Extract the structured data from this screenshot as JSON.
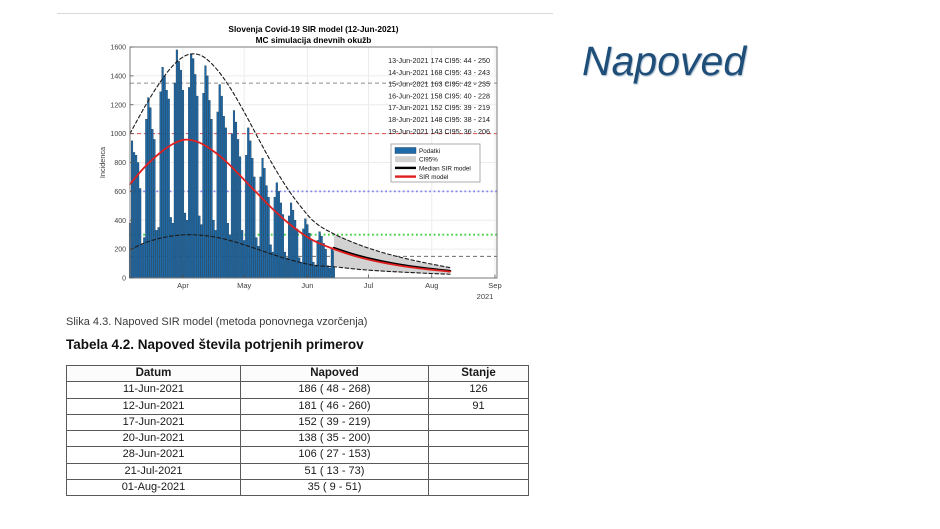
{
  "slide": {
    "title": "Napoved",
    "title_color": "#1f4e79"
  },
  "figure_caption": "Slika 4.3. Napoved SIR model (metoda ponovnega vzorčenja)",
  "table": {
    "title": "Tabela 4.2. Napoved števila potrjenih primerov",
    "columns": [
      "Datum",
      "Napoved",
      "Stanje"
    ],
    "rows": [
      [
        "11-Jun-2021",
        "186 ( 48 - 268)",
        "126"
      ],
      [
        "12-Jun-2021",
        "181 ( 46 - 260)",
        "91"
      ],
      [
        "17-Jun-2021",
        "152 ( 39 - 219)",
        ""
      ],
      [
        "20-Jun-2021",
        "138 ( 35 - 200)",
        ""
      ],
      [
        "28-Jun-2021",
        "106 ( 27 - 153)",
        ""
      ],
      [
        "21-Jul-2021",
        "51 ( 13 - 73)",
        ""
      ],
      [
        "01-Aug-2021",
        "35 ( 9 - 51)",
        ""
      ]
    ]
  },
  "chart_data": {
    "type": "bar",
    "title": "Slovenja Covid-19 SIR model (12-Jun-2021)",
    "subtitle": "MC simulacija dnevnih okužb",
    "ylabel": "Incidenca",
    "ylim": [
      0,
      1600
    ],
    "yticks": [
      0,
      200,
      400,
      600,
      800,
      1000,
      1200,
      1400,
      1600
    ],
    "xticks": [
      {
        "label": "Apr",
        "day": 26
      },
      {
        "label": "May",
        "day": 56
      },
      {
        "label": "Jun",
        "day": 87
      },
      {
        "label": "Jul",
        "day": 117
      },
      {
        "label": "Aug",
        "day": 148
      },
      {
        "label": "Sep",
        "day": 179
      }
    ],
    "x_domain_days": [
      0,
      180
    ],
    "year_label": "2021",
    "grid": true,
    "annotations": [
      "13-Jun-2021  174 CI95:  44 -  250",
      "14-Jun-2021  168 CI95:  43 -  243",
      "15-Jun-2021  163 CI95:  42 -  235",
      "16-Jun-2021  158 CI95:  40 -  228",
      "17-Jun-2021  152 CI95:  39 -  219",
      "18-Jun-2021  148 CI95:  38 -  214",
      "19-Jun-2021  143 CI95:  36 -  206"
    ],
    "legend": {
      "position": "right-middle",
      "entries": [
        {
          "label": "Podatki",
          "type": "patch",
          "color": "#1f6aa9"
        },
        {
          "label": "CI95%",
          "type": "patch",
          "color": "#d2d2d2"
        },
        {
          "label": "Median SIR model",
          "type": "line",
          "color": "#000000"
        },
        {
          "label": "SIR model",
          "type": "line",
          "color": "#e01f1f"
        }
      ]
    },
    "hlines": [
      {
        "value": 1350,
        "color": "#8c8c8c",
        "style": "dashed"
      },
      {
        "value": 1000,
        "color": "#e05050",
        "style": "dashed"
      },
      {
        "value": 600,
        "color": "#8585ee",
        "style": "dotted"
      },
      {
        "value": 300,
        "color": "#3fd23f",
        "style": "dotted"
      },
      {
        "value": 150,
        "color": "#6e6e6e",
        "style": "dashed"
      }
    ],
    "bars": {
      "name": "Podatki",
      "color": "#1f6aa9",
      "edge_color": "#10344f",
      "start_day": 0,
      "values": [
        380,
        950,
        870,
        850,
        800,
        620,
        230,
        280,
        1100,
        1250,
        1180,
        1030,
        960,
        330,
        350,
        1290,
        1460,
        1400,
        1300,
        1240,
        420,
        380,
        1350,
        1580,
        1500,
        1440,
        1300,
        450,
        400,
        1320,
        1550,
        1520,
        1410,
        1260,
        430,
        370,
        1280,
        1470,
        1400,
        1230,
        1100,
        400,
        330,
        1150,
        1340,
        1260,
        1120,
        1040,
        380,
        300,
        1000,
        1160,
        1080,
        960,
        840,
        330,
        260,
        850,
        1040,
        950,
        830,
        700,
        280,
        220,
        700,
        830,
        760,
        640,
        560,
        230,
        180,
        560,
        660,
        600,
        520,
        440,
        180,
        140,
        430,
        520,
        470,
        400,
        340,
        140,
        110,
        340,
        410,
        370,
        310,
        260,
        110,
        90,
        260,
        320,
        290,
        240,
        200,
        85,
        70,
        210,
        190
      ]
    },
    "ci_band": {
      "name": "CI95%",
      "color": "#d2d2d2",
      "upper": [
        [
          100,
          310
        ],
        [
          110,
          244
        ],
        [
          120,
          190
        ],
        [
          130,
          148
        ],
        [
          140,
          114
        ],
        [
          148,
          94
        ],
        [
          157,
          74
        ]
      ],
      "lower": [
        [
          100,
          80
        ],
        [
          110,
          62
        ],
        [
          120,
          50
        ],
        [
          130,
          41
        ],
        [
          140,
          34
        ],
        [
          148,
          29
        ],
        [
          157,
          25
        ]
      ]
    },
    "series": [
      {
        "name": "envelope-upper",
        "style": "dashed",
        "color": "#1a1a1a",
        "width": 1.1,
        "points": [
          [
            0,
            1000
          ],
          [
            7,
            1180
          ],
          [
            14,
            1340
          ],
          [
            21,
            1470
          ],
          [
            28,
            1545
          ],
          [
            35,
            1540
          ],
          [
            42,
            1455
          ],
          [
            49,
            1320
          ],
          [
            56,
            1150
          ],
          [
            63,
            965
          ],
          [
            70,
            785
          ],
          [
            77,
            625
          ],
          [
            84,
            490
          ],
          [
            91,
            382
          ],
          [
            100,
            305
          ],
          [
            112,
            232
          ],
          [
            124,
            176
          ],
          [
            136,
            132
          ],
          [
            148,
            96
          ],
          [
            157,
            72
          ]
        ]
      },
      {
        "name": "envelope-lower",
        "style": "dashed",
        "color": "#1a1a1a",
        "width": 1.1,
        "points": [
          [
            0,
            195
          ],
          [
            7,
            242
          ],
          [
            14,
            273
          ],
          [
            21,
            292
          ],
          [
            28,
            300
          ],
          [
            35,
            296
          ],
          [
            42,
            283
          ],
          [
            49,
            260
          ],
          [
            56,
            230
          ],
          [
            63,
            197
          ],
          [
            70,
            163
          ],
          [
            77,
            132
          ],
          [
            84,
            106
          ],
          [
            91,
            86
          ],
          [
            100,
            78
          ],
          [
            112,
            60
          ],
          [
            124,
            48
          ],
          [
            136,
            39
          ],
          [
            148,
            31
          ],
          [
            157,
            26
          ]
        ]
      },
      {
        "name": "Median SIR model",
        "style": "solid",
        "color": "#000000",
        "width": 2.3,
        "points": [
          [
            100,
            208
          ],
          [
            110,
            162
          ],
          [
            120,
            126
          ],
          [
            130,
            98
          ],
          [
            140,
            76
          ],
          [
            148,
            62
          ],
          [
            157,
            48
          ]
        ]
      },
      {
        "name": "SIR model",
        "style": "solid",
        "color": "#e01f1f",
        "width": 1.8,
        "points": [
          [
            0,
            650
          ],
          [
            7,
            765
          ],
          [
            14,
            858
          ],
          [
            21,
            928
          ],
          [
            27,
            958
          ],
          [
            34,
            938
          ],
          [
            41,
            878
          ],
          [
            48,
            795
          ],
          [
            56,
            680
          ],
          [
            63,
            578
          ],
          [
            70,
            478
          ],
          [
            77,
            388
          ],
          [
            84,
            312
          ],
          [
            91,
            252
          ],
          [
            100,
            200
          ],
          [
            110,
            153
          ],
          [
            120,
            118
          ],
          [
            130,
            91
          ],
          [
            140,
            70
          ],
          [
            148,
            57
          ],
          [
            157,
            44
          ]
        ]
      }
    ]
  }
}
